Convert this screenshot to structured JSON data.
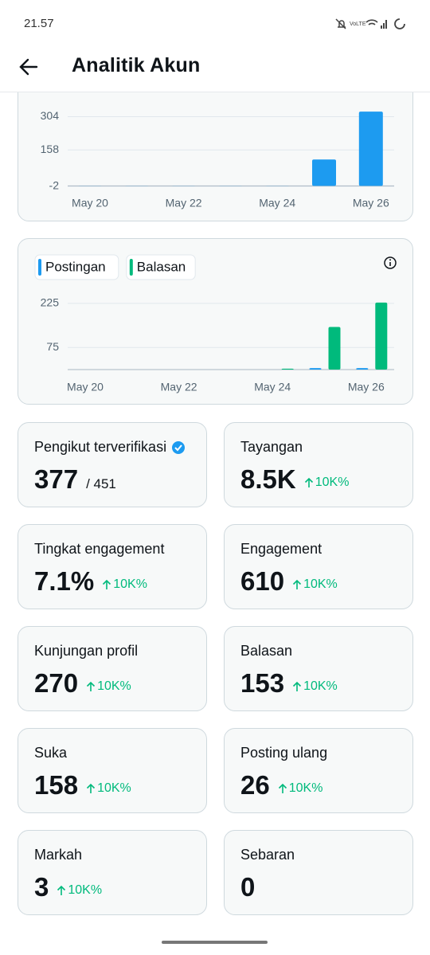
{
  "status_bar": {
    "time": "21.57"
  },
  "header": {
    "title": "Analitik Akun"
  },
  "chart_data": [
    {
      "type": "bar",
      "categories": [
        "May 20",
        null,
        "May 22",
        null,
        "May 24",
        null,
        "May 26"
      ],
      "values": [
        0,
        0,
        0,
        0,
        0,
        116,
        326
      ],
      "color": "#1d9bf0",
      "ylim": [
        -2,
        330
      ],
      "yticks": [
        -2,
        158,
        304
      ],
      "grid": true
    },
    {
      "type": "grouped-bar",
      "categories": [
        "May 20",
        null,
        "May 22",
        null,
        "May 24",
        null,
        "May 26"
      ],
      "series": [
        {
          "name": "Postingan",
          "color": "#1d9bf0",
          "values": [
            0,
            0,
            0,
            0,
            0,
            5,
            5
          ]
        },
        {
          "name": "Balasan",
          "color": "#00ba7c",
          "values": [
            0,
            0,
            0,
            0,
            3,
            145,
            228
          ]
        }
      ],
      "ylim": [
        0,
        260
      ],
      "yticks": [
        75,
        225
      ],
      "grid": true,
      "legend": "top-left"
    }
  ],
  "stats": [
    {
      "label": "Pengikut terverifikasi",
      "verified": true,
      "value": "377",
      "total": "/ 451"
    },
    {
      "label": "Tayangan",
      "value": "8.5K",
      "change": "10K%"
    },
    {
      "label": "Tingkat engagement",
      "value": "7.1%",
      "change": "10K%"
    },
    {
      "label": "Engagement",
      "value": "610",
      "change": "10K%"
    },
    {
      "label": "Kunjungan profil",
      "value": "270",
      "change": "10K%"
    },
    {
      "label": "Balasan",
      "value": "153",
      "change": "10K%"
    },
    {
      "label": "Suka",
      "value": "158",
      "change": "10K%"
    },
    {
      "label": "Posting ulang",
      "value": "26",
      "change": "10K%"
    },
    {
      "label": "Markah",
      "value": "3",
      "change": "10K%"
    },
    {
      "label": "Sebaran",
      "value": "0"
    }
  ]
}
